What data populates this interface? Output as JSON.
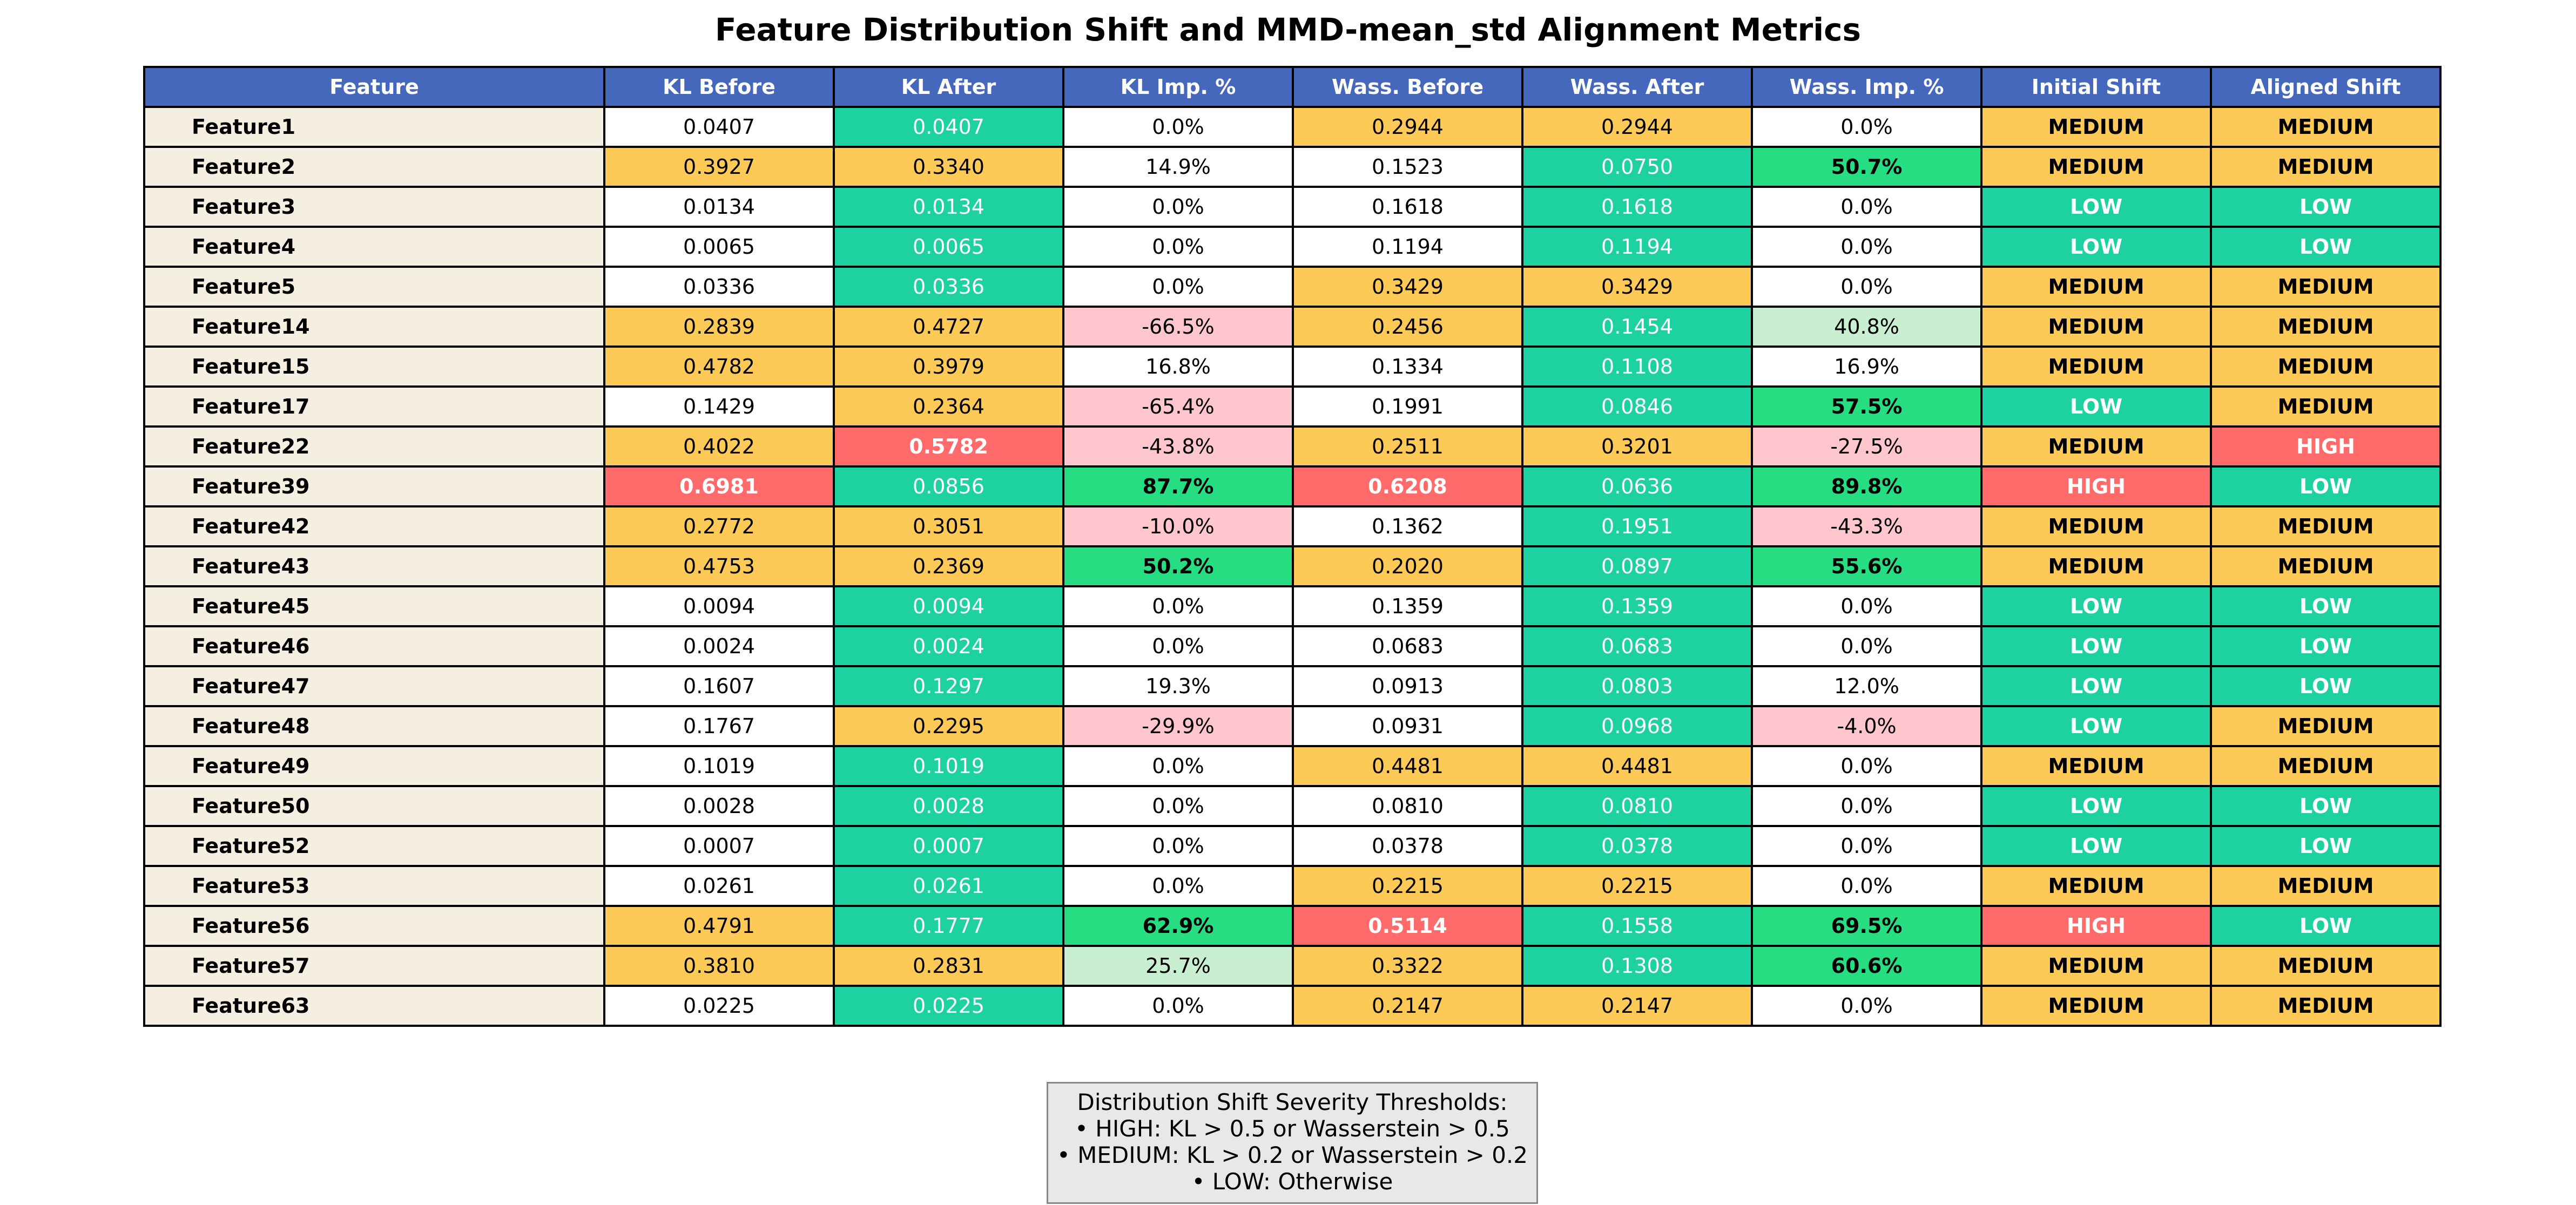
{
  "title": "Feature Distribution Shift and MMD-mean_std Alignment Metrics",
  "colors": {
    "header": "#4668bc",
    "feature_cell": "#f5efe1",
    "white": "#ffffff",
    "teal": "#1dd1a1",
    "orange": "#feca57",
    "red": "#ff6b6b",
    "pink": "#ffc6cd",
    "light_green": "#c8efd2",
    "green": "#26de81"
  },
  "legend": {
    "title": "Distribution Shift Severity Thresholds:",
    "lines": [
      "• HIGH: KL > 0.5 or Wasserstein > 0.5",
      "• MEDIUM: KL > 0.2 or Wasserstein > 0.2",
      "• LOW: Otherwise"
    ]
  },
  "chart_data": {
    "type": "table",
    "title": "Feature Distribution Shift and MMD-mean_std Alignment Metrics",
    "columns": [
      "Feature",
      "KL Before",
      "KL After",
      "KL Imp. %",
      "Wass. Before",
      "Wass. After",
      "Wass. Imp. %",
      "Initial Shift",
      "Aligned Shift"
    ],
    "rows": [
      [
        "Feature1",
        "0.0407",
        "0.0407",
        "0.0%",
        "0.2944",
        "0.2944",
        "0.0%",
        "MEDIUM",
        "MEDIUM"
      ],
      [
        "Feature2",
        "0.3927",
        "0.3340",
        "14.9%",
        "0.1523",
        "0.0750",
        "50.7%",
        "MEDIUM",
        "MEDIUM"
      ],
      [
        "Feature3",
        "0.0134",
        "0.0134",
        "0.0%",
        "0.1618",
        "0.1618",
        "0.0%",
        "LOW",
        "LOW"
      ],
      [
        "Feature4",
        "0.0065",
        "0.0065",
        "0.0%",
        "0.1194",
        "0.1194",
        "0.0%",
        "LOW",
        "LOW"
      ],
      [
        "Feature5",
        "0.0336",
        "0.0336",
        "0.0%",
        "0.3429",
        "0.3429",
        "0.0%",
        "MEDIUM",
        "MEDIUM"
      ],
      [
        "Feature14",
        "0.2839",
        "0.4727",
        "-66.5%",
        "0.2456",
        "0.1454",
        "40.8%",
        "MEDIUM",
        "MEDIUM"
      ],
      [
        "Feature15",
        "0.4782",
        "0.3979",
        "16.8%",
        "0.1334",
        "0.1108",
        "16.9%",
        "MEDIUM",
        "MEDIUM"
      ],
      [
        "Feature17",
        "0.1429",
        "0.2364",
        "-65.4%",
        "0.1991",
        "0.0846",
        "57.5%",
        "LOW",
        "MEDIUM"
      ],
      [
        "Feature22",
        "0.4022",
        "0.5782",
        "-43.8%",
        "0.2511",
        "0.3201",
        "-27.5%",
        "MEDIUM",
        "HIGH"
      ],
      [
        "Feature39",
        "0.6981",
        "0.0856",
        "87.7%",
        "0.6208",
        "0.0636",
        "89.8%",
        "HIGH",
        "LOW"
      ],
      [
        "Feature42",
        "0.2772",
        "0.3051",
        "-10.0%",
        "0.1362",
        "0.1951",
        "-43.3%",
        "MEDIUM",
        "MEDIUM"
      ],
      [
        "Feature43",
        "0.4753",
        "0.2369",
        "50.2%",
        "0.2020",
        "0.0897",
        "55.6%",
        "MEDIUM",
        "MEDIUM"
      ],
      [
        "Feature45",
        "0.0094",
        "0.0094",
        "0.0%",
        "0.1359",
        "0.1359",
        "0.0%",
        "LOW",
        "LOW"
      ],
      [
        "Feature46",
        "0.0024",
        "0.0024",
        "0.0%",
        "0.0683",
        "0.0683",
        "0.0%",
        "LOW",
        "LOW"
      ],
      [
        "Feature47",
        "0.1607",
        "0.1297",
        "19.3%",
        "0.0913",
        "0.0803",
        "12.0%",
        "LOW",
        "LOW"
      ],
      [
        "Feature48",
        "0.1767",
        "0.2295",
        "-29.9%",
        "0.0931",
        "0.0968",
        "-4.0%",
        "LOW",
        "MEDIUM"
      ],
      [
        "Feature49",
        "0.1019",
        "0.1019",
        "0.0%",
        "0.4481",
        "0.4481",
        "0.0%",
        "MEDIUM",
        "MEDIUM"
      ],
      [
        "Feature50",
        "0.0028",
        "0.0028",
        "0.0%",
        "0.0810",
        "0.0810",
        "0.0%",
        "LOW",
        "LOW"
      ],
      [
        "Feature52",
        "0.0007",
        "0.0007",
        "0.0%",
        "0.0378",
        "0.0378",
        "0.0%",
        "LOW",
        "LOW"
      ],
      [
        "Feature53",
        "0.0261",
        "0.0261",
        "0.0%",
        "0.2215",
        "0.2215",
        "0.0%",
        "MEDIUM",
        "MEDIUM"
      ],
      [
        "Feature56",
        "0.4791",
        "0.1777",
        "62.9%",
        "0.5114",
        "0.1558",
        "69.5%",
        "HIGH",
        "LOW"
      ],
      [
        "Feature57",
        "0.3810",
        "0.2831",
        "25.7%",
        "0.3322",
        "0.1308",
        "60.6%",
        "MEDIUM",
        "MEDIUM"
      ],
      [
        "Feature63",
        "0.0225",
        "0.0225",
        "0.0%",
        "0.2147",
        "0.2147",
        "0.0%",
        "MEDIUM",
        "MEDIUM"
      ]
    ],
    "cell_colors": [
      [
        "feature_cell",
        "white",
        "teal",
        "white",
        "orange",
        "orange",
        "white",
        "orange",
        "orange"
      ],
      [
        "feature_cell",
        "orange",
        "orange",
        "white",
        "white",
        "teal",
        "green",
        "orange",
        "orange"
      ],
      [
        "feature_cell",
        "white",
        "teal",
        "white",
        "white",
        "teal",
        "white",
        "teal",
        "teal"
      ],
      [
        "feature_cell",
        "white",
        "teal",
        "white",
        "white",
        "teal",
        "white",
        "teal",
        "teal"
      ],
      [
        "feature_cell",
        "white",
        "teal",
        "white",
        "orange",
        "orange",
        "white",
        "orange",
        "orange"
      ],
      [
        "feature_cell",
        "orange",
        "orange",
        "pink",
        "orange",
        "teal",
        "light_green",
        "orange",
        "orange"
      ],
      [
        "feature_cell",
        "orange",
        "orange",
        "white",
        "white",
        "teal",
        "white",
        "orange",
        "orange"
      ],
      [
        "feature_cell",
        "white",
        "orange",
        "pink",
        "white",
        "teal",
        "green",
        "teal",
        "orange"
      ],
      [
        "feature_cell",
        "orange",
        "red",
        "pink",
        "orange",
        "orange",
        "pink",
        "orange",
        "red"
      ],
      [
        "feature_cell",
        "red",
        "teal",
        "green",
        "red",
        "teal",
        "green",
        "red",
        "teal"
      ],
      [
        "feature_cell",
        "orange",
        "orange",
        "pink",
        "white",
        "teal",
        "pink",
        "orange",
        "orange"
      ],
      [
        "feature_cell",
        "orange",
        "orange",
        "green",
        "orange",
        "teal",
        "green",
        "orange",
        "orange"
      ],
      [
        "feature_cell",
        "white",
        "teal",
        "white",
        "white",
        "teal",
        "white",
        "teal",
        "teal"
      ],
      [
        "feature_cell",
        "white",
        "teal",
        "white",
        "white",
        "teal",
        "white",
        "teal",
        "teal"
      ],
      [
        "feature_cell",
        "white",
        "teal",
        "white",
        "white",
        "teal",
        "white",
        "teal",
        "teal"
      ],
      [
        "feature_cell",
        "white",
        "orange",
        "pink",
        "white",
        "teal",
        "pink",
        "teal",
        "orange"
      ],
      [
        "feature_cell",
        "white",
        "teal",
        "white",
        "orange",
        "orange",
        "white",
        "orange",
        "orange"
      ],
      [
        "feature_cell",
        "white",
        "teal",
        "white",
        "white",
        "teal",
        "white",
        "teal",
        "teal"
      ],
      [
        "feature_cell",
        "white",
        "teal",
        "white",
        "white",
        "teal",
        "white",
        "teal",
        "teal"
      ],
      [
        "feature_cell",
        "white",
        "teal",
        "white",
        "orange",
        "orange",
        "white",
        "orange",
        "orange"
      ],
      [
        "feature_cell",
        "orange",
        "teal",
        "green",
        "red",
        "teal",
        "green",
        "red",
        "teal"
      ],
      [
        "feature_cell",
        "orange",
        "orange",
        "light_green",
        "orange",
        "teal",
        "green",
        "orange",
        "orange"
      ],
      [
        "feature_cell",
        "white",
        "teal",
        "white",
        "orange",
        "orange",
        "white",
        "orange",
        "orange"
      ]
    ]
  }
}
